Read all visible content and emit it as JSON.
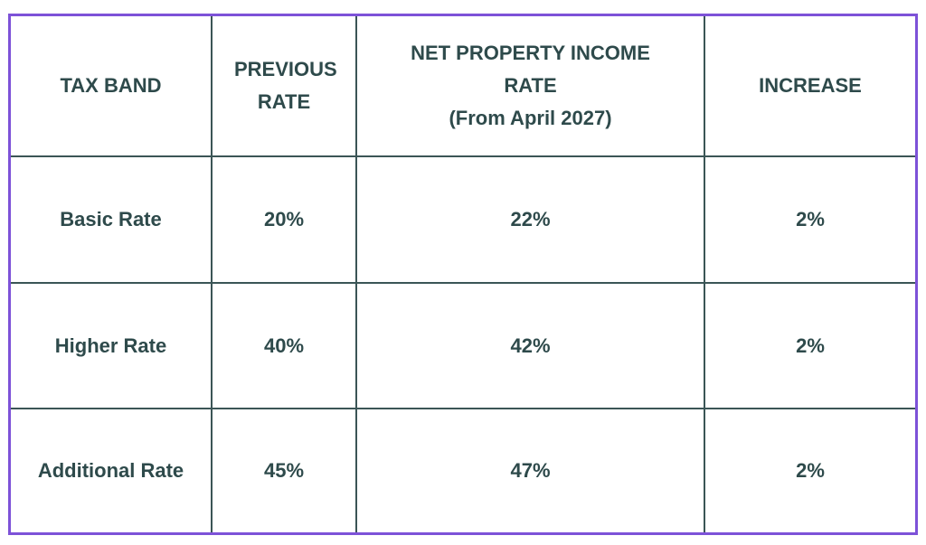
{
  "table": {
    "headers": [
      "TAX BAND",
      "PREVIOUS RATE",
      {
        "main": "NET PROPERTY INCOME RATE",
        "note": "(From April 2027)"
      },
      "INCREASE"
    ],
    "rows": [
      [
        "Basic Rate",
        "20%",
        "22%",
        "2%"
      ],
      [
        "Higher Rate",
        "40%",
        "42%",
        "2%"
      ],
      [
        "Additional Rate",
        "45%",
        "47%",
        "2%"
      ]
    ]
  }
}
